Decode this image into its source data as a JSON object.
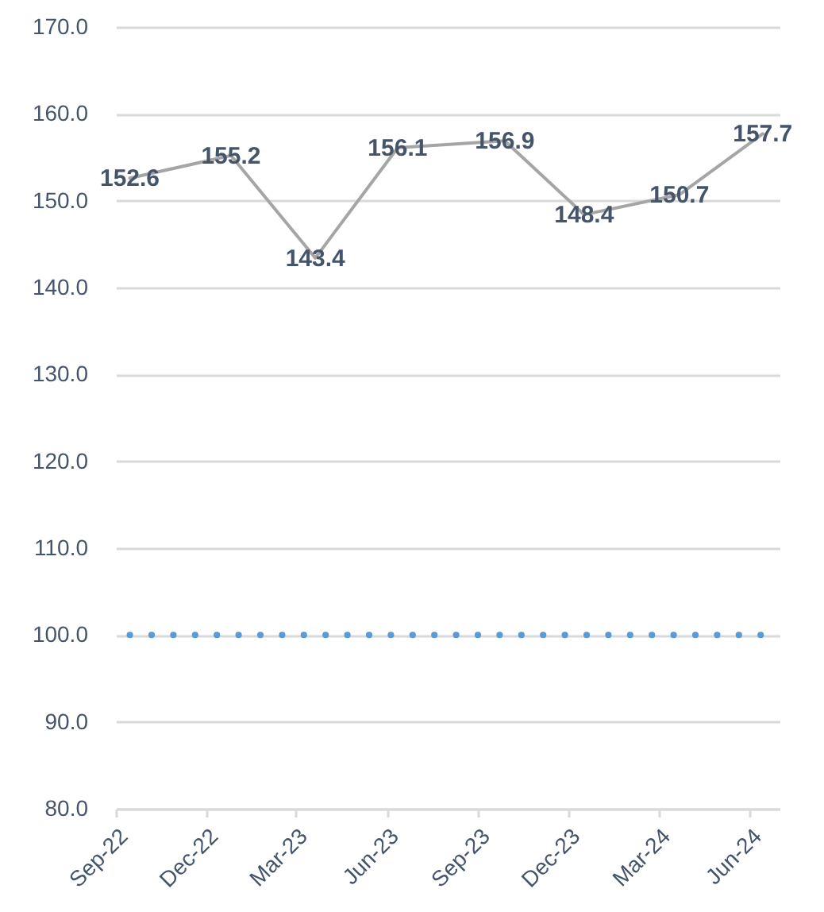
{
  "chart_data": {
    "type": "line",
    "x": [
      "2022-09-15",
      "2022-12-26",
      "2023-03-21",
      "2023-06-12",
      "2023-09-28",
      "2023-12-17",
      "2024-03-22",
      "2024-06-14"
    ],
    "series": [
      {
        "color": "#a5a5a5",
        "values": [
          152.6,
          155.2,
          143.4,
          156.1,
          156.9,
          148.4,
          150.7,
          157.7
        ]
      }
    ],
    "data_labels": true,
    "xlim": [
      "2022-09-01",
      "2024-07-01"
    ],
    "xticks": [
      {
        "value": "2022-09-01",
        "label": "Sep-22"
      },
      {
        "value": "2022-12-01",
        "label": "Dec-22"
      },
      {
        "value": "2023-03-01",
        "label": "Mar-23"
      },
      {
        "value": "2023-06-01",
        "label": "Jun-23"
      },
      {
        "value": "2023-09-01",
        "label": "Sep-23"
      },
      {
        "value": "2023-12-01",
        "label": "Dec-23"
      },
      {
        "value": "2024-03-01",
        "label": "Mar-24"
      },
      {
        "value": "2024-06-01",
        "label": "Jun-24"
      }
    ],
    "ylim": [
      80,
      170
    ],
    "yticks": [
      {
        "value": 80,
        "label": "80.0"
      },
      {
        "value": 90,
        "label": "90.0"
      },
      {
        "value": 100,
        "label": "100.0"
      },
      {
        "value": 110,
        "label": "110.0"
      },
      {
        "value": 120,
        "label": "120.0"
      },
      {
        "value": 130,
        "label": "130.0"
      },
      {
        "value": 140,
        "label": "140.0"
      },
      {
        "value": 150,
        "label": "150.0"
      },
      {
        "value": 160,
        "label": "160.0"
      },
      {
        "value": 170,
        "label": "170.0"
      }
    ],
    "grid": "y",
    "ref_lines": [
      {
        "axis": "y",
        "value": 100,
        "color": "#5b9bd5",
        "line_style": "dotted"
      }
    ]
  }
}
